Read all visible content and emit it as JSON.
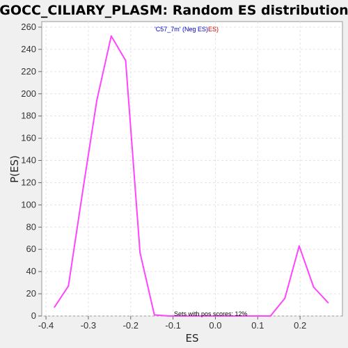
{
  "chart_data": {
    "type": "line",
    "title": "GOCC_CILIARY_PLASM: Random ES distribution",
    "xlabel": "ES",
    "ylabel": "P(ES)",
    "xlim": [
      -0.41,
      0.3
    ],
    "ylim": [
      0,
      265
    ],
    "x_ticks": [
      -0.4,
      -0.3,
      -0.2,
      -0.1,
      0.0,
      0.1,
      0.2
    ],
    "x_tick_labels": [
      "-0.4",
      "-0.3",
      "-0.2",
      "-0.1",
      "0.0",
      "0.1",
      "0.2"
    ],
    "y_ticks": [
      0,
      20,
      40,
      60,
      80,
      100,
      120,
      140,
      160,
      180,
      200,
      220,
      240,
      260
    ],
    "y_tick_labels": [
      "0",
      "20",
      "40",
      "60",
      "80",
      "100",
      "120",
      "140",
      "160",
      "180",
      "200",
      "220",
      "240",
      "260"
    ],
    "grid": true,
    "series": [
      {
        "color": "#ff44ff",
        "x": [
          -0.38,
          -0.347,
          -0.313,
          -0.28,
          -0.246,
          -0.212,
          -0.178,
          -0.144,
          -0.11,
          0.13,
          0.164,
          0.198,
          0.232,
          0.266
        ],
        "y": [
          8,
          27,
          113,
          194,
          252,
          230,
          57,
          1,
          0,
          0,
          16,
          63,
          26,
          12
        ]
      }
    ],
    "annotations": {
      "legend_parts": [
        "'C57_7m' (Neg ES)",
        "ES)"
      ],
      "legend_colors": [
        "#0000cc",
        "#cc0000"
      ],
      "note": "Sets with pos scores: 12%"
    }
  }
}
